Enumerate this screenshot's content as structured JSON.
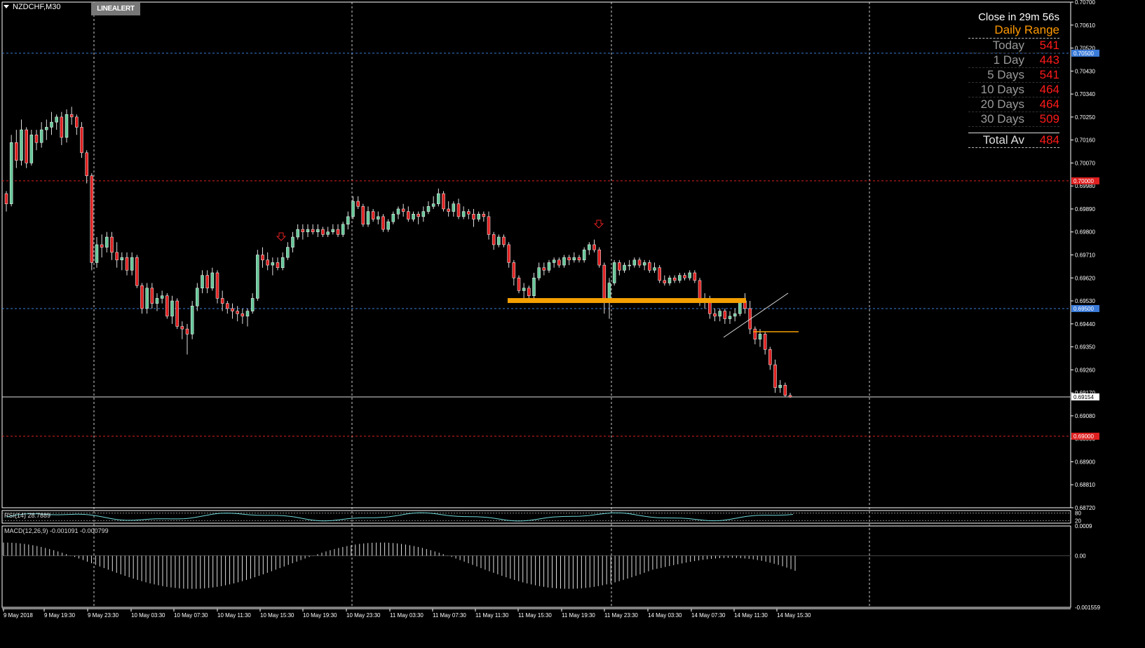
{
  "window": {
    "symbol": "NZDCHF,M30",
    "line_alert_label": "LINEALERT"
  },
  "panel": {
    "close_in": "Close in 29m 56s",
    "title": "Daily Range",
    "rows": [
      {
        "label": "Today",
        "value": "541"
      },
      {
        "label": "1 Day",
        "value": "443"
      },
      {
        "label": "5 Days",
        "value": "541"
      },
      {
        "label": "10 Days",
        "value": "464"
      },
      {
        "label": "20 Days",
        "value": "464"
      },
      {
        "label": "30 Days",
        "value": "509"
      }
    ],
    "total": {
      "label": "Total Av",
      "value": "484"
    }
  },
  "indicators": {
    "rsi_label": "RSI(14) 28.7889",
    "rsi_levels": [
      "80",
      "20"
    ],
    "macd_label": "MACD(12,26,9) -0.001091 -0.000799",
    "macd_ticks": [
      "0.0009",
      "0.00",
      "-0.001559"
    ]
  },
  "chart_data": {
    "type": "candlestick",
    "symbol": "NZDCHF",
    "timeframe": "M30",
    "ylim": [
      0.6872,
      0.707
    ],
    "y_ticks": [
      "0.70700",
      "0.70610",
      "0.70520",
      "0.70430",
      "0.70340",
      "0.70250",
      "0.70160",
      "0.70070",
      "0.69980",
      "0.69890",
      "0.69800",
      "0.69710",
      "0.69620",
      "0.69530",
      "0.69440",
      "0.69350",
      "0.69260",
      "0.69170",
      "0.69080",
      "0.68990",
      "0.68900",
      "0.68810",
      "0.68720"
    ],
    "x_ticks": [
      "9 May 2018",
      "9 May 19:30",
      "9 May 23:30",
      "10 May 03:30",
      "10 May 07:30",
      "10 May 11:30",
      "10 May 15:30",
      "10 May 19:30",
      "10 May 23:30",
      "11 May 03:30",
      "11 May 07:30",
      "11 May 11:30",
      "11 May 15:30",
      "11 May 19:30",
      "11 May 23:30",
      "14 May 03:30",
      "14 May 07:30",
      "14 May 11:30",
      "14 May 15:30"
    ],
    "levels": [
      {
        "price": 0.705,
        "label": "0.70500",
        "style": "dotted",
        "color": "#3b7bd8"
      },
      {
        "price": 0.7,
        "label": "0.70000",
        "style": "dotted",
        "color": "#e02020"
      },
      {
        "price": 0.695,
        "label": "0.69500",
        "style": "dotted",
        "color": "#3b7bd8"
      },
      {
        "price": 0.69154,
        "label": "0.69154",
        "style": "solid",
        "color": "#dddddd"
      },
      {
        "price": 0.69,
        "label": "0.69000",
        "style": "dotted",
        "color": "#e02020"
      }
    ],
    "bull_color": "#66c899",
    "bear_color": "#e02020",
    "candles": [
      [
        0.6995,
        0.6996,
        0.6988,
        0.6991
      ],
      [
        0.6991,
        0.7018,
        0.699,
        0.7015
      ],
      [
        0.7015,
        0.702,
        0.7005,
        0.7008
      ],
      [
        0.7008,
        0.7024,
        0.7006,
        0.702
      ],
      [
        0.702,
        0.7021,
        0.7005,
        0.7007
      ],
      [
        0.7007,
        0.702,
        0.7006,
        0.7018
      ],
      [
        0.7018,
        0.702,
        0.7012,
        0.7015
      ],
      [
        0.7015,
        0.7023,
        0.7013,
        0.702
      ],
      [
        0.702,
        0.7024,
        0.7016,
        0.7021
      ],
      [
        0.7021,
        0.7027,
        0.7018,
        0.7023
      ],
      [
        0.7023,
        0.7026,
        0.702,
        0.7025
      ],
      [
        0.7025,
        0.7027,
        0.7014,
        0.7017
      ],
      [
        0.7017,
        0.7028,
        0.7015,
        0.7026
      ],
      [
        0.7026,
        0.7029,
        0.7022,
        0.7025
      ],
      [
        0.7025,
        0.7026,
        0.7018,
        0.7021
      ],
      [
        0.7021,
        0.7023,
        0.7009,
        0.7011
      ],
      [
        0.7011,
        0.7012,
        0.6999,
        0.7002
      ],
      [
        0.7002,
        0.7003,
        0.6965,
        0.6968
      ],
      [
        0.6968,
        0.6978,
        0.6966,
        0.6975
      ],
      [
        0.6975,
        0.6979,
        0.697,
        0.6974
      ],
      [
        0.6974,
        0.698,
        0.6972,
        0.6978
      ],
      [
        0.6978,
        0.698,
        0.6969,
        0.6972
      ],
      [
        0.6972,
        0.6976,
        0.6966,
        0.6969
      ],
      [
        0.6969,
        0.6972,
        0.6965,
        0.697
      ],
      [
        0.697,
        0.6972,
        0.6963,
        0.6965
      ],
      [
        0.6965,
        0.6972,
        0.6963,
        0.697
      ],
      [
        0.697,
        0.6971,
        0.6958,
        0.6959
      ],
      [
        0.6959,
        0.696,
        0.6948,
        0.695
      ],
      [
        0.695,
        0.696,
        0.6948,
        0.6958
      ],
      [
        0.6958,
        0.696,
        0.695,
        0.6952
      ],
      [
        0.6952,
        0.6956,
        0.6949,
        0.6954
      ],
      [
        0.6954,
        0.6957,
        0.6952,
        0.6955
      ],
      [
        0.6955,
        0.6956,
        0.6946,
        0.6947
      ],
      [
        0.6947,
        0.6955,
        0.6944,
        0.6953
      ],
      [
        0.6953,
        0.6954,
        0.6942,
        0.6943
      ],
      [
        0.6943,
        0.6945,
        0.6938,
        0.6942
      ],
      [
        0.6942,
        0.6944,
        0.6932,
        0.694
      ],
      [
        0.694,
        0.6953,
        0.6938,
        0.6951
      ],
      [
        0.6951,
        0.696,
        0.6949,
        0.6958
      ],
      [
        0.6958,
        0.6965,
        0.6956,
        0.6963
      ],
      [
        0.6963,
        0.6965,
        0.6956,
        0.6958
      ],
      [
        0.6958,
        0.6966,
        0.6957,
        0.6964
      ],
      [
        0.6964,
        0.6965,
        0.6952,
        0.6954
      ],
      [
        0.6954,
        0.6957,
        0.6949,
        0.6952
      ],
      [
        0.6952,
        0.6953,
        0.6948,
        0.695
      ],
      [
        0.695,
        0.6952,
        0.6946,
        0.6949
      ],
      [
        0.6949,
        0.6951,
        0.6945,
        0.6948
      ],
      [
        0.6948,
        0.695,
        0.6944,
        0.6947
      ],
      [
        0.6947,
        0.695,
        0.6943,
        0.6949
      ],
      [
        0.6949,
        0.6956,
        0.6948,
        0.6954
      ],
      [
        0.6954,
        0.6973,
        0.6953,
        0.6971
      ],
      [
        0.6971,
        0.6974,
        0.6966,
        0.6969
      ],
      [
        0.6969,
        0.6972,
        0.6965,
        0.6967
      ],
      [
        0.6967,
        0.697,
        0.6963,
        0.6968
      ],
      [
        0.6968,
        0.697,
        0.6965,
        0.6966
      ],
      [
        0.6966,
        0.6972,
        0.6965,
        0.697
      ],
      [
        0.697,
        0.6976,
        0.6969,
        0.6974
      ],
      [
        0.6974,
        0.698,
        0.6972,
        0.6978
      ],
      [
        0.6978,
        0.6983,
        0.6977,
        0.6981
      ],
      [
        0.6981,
        0.6983,
        0.6977,
        0.698
      ],
      [
        0.698,
        0.6983,
        0.6978,
        0.6981
      ],
      [
        0.6981,
        0.6983,
        0.6979,
        0.698
      ],
      [
        0.698,
        0.6983,
        0.6978,
        0.6981
      ],
      [
        0.6981,
        0.6982,
        0.6978,
        0.6979
      ],
      [
        0.6979,
        0.6982,
        0.6978,
        0.698
      ],
      [
        0.698,
        0.6983,
        0.6979,
        0.6981
      ],
      [
        0.6981,
        0.6983,
        0.6978,
        0.6979
      ],
      [
        0.6979,
        0.6984,
        0.6978,
        0.6983
      ],
      [
        0.6983,
        0.6988,
        0.6981,
        0.6986
      ],
      [
        0.6986,
        0.6994,
        0.6985,
        0.6992
      ],
      [
        0.6992,
        0.6994,
        0.6989,
        0.699
      ],
      [
        0.699,
        0.6991,
        0.6982,
        0.6983
      ],
      [
        0.6983,
        0.699,
        0.6982,
        0.6988
      ],
      [
        0.6988,
        0.6989,
        0.6984,
        0.6985
      ],
      [
        0.6985,
        0.6988,
        0.6983,
        0.6986
      ],
      [
        0.6986,
        0.6987,
        0.698,
        0.6981
      ],
      [
        0.6981,
        0.6985,
        0.698,
        0.6984
      ],
      [
        0.6984,
        0.6988,
        0.6983,
        0.6987
      ],
      [
        0.6987,
        0.699,
        0.6985,
        0.6989
      ],
      [
        0.6989,
        0.6991,
        0.6986,
        0.6988
      ],
      [
        0.6988,
        0.699,
        0.6984,
        0.6985
      ],
      [
        0.6985,
        0.6988,
        0.6984,
        0.6987
      ],
      [
        0.6987,
        0.6988,
        0.6983,
        0.6986
      ],
      [
        0.6986,
        0.699,
        0.6984,
        0.6988
      ],
      [
        0.6988,
        0.6992,
        0.6987,
        0.699
      ],
      [
        0.699,
        0.6994,
        0.6989,
        0.6991
      ],
      [
        0.6991,
        0.6997,
        0.699,
        0.6995
      ],
      [
        0.6995,
        0.6996,
        0.6988,
        0.6989
      ],
      [
        0.6989,
        0.6992,
        0.6986,
        0.6988
      ],
      [
        0.6988,
        0.6992,
        0.6986,
        0.6991
      ],
      [
        0.6991,
        0.6993,
        0.6985,
        0.6986
      ],
      [
        0.6986,
        0.699,
        0.6985,
        0.6988
      ],
      [
        0.6988,
        0.6989,
        0.6985,
        0.6987
      ],
      [
        0.6987,
        0.6989,
        0.6982,
        0.6985
      ],
      [
        0.6985,
        0.6988,
        0.6984,
        0.6987
      ],
      [
        0.6987,
        0.6988,
        0.6984,
        0.6986
      ],
      [
        0.6986,
        0.6988,
        0.6977,
        0.6979
      ],
      [
        0.6979,
        0.698,
        0.6973,
        0.6975
      ],
      [
        0.6975,
        0.6979,
        0.6974,
        0.6978
      ],
      [
        0.6978,
        0.6979,
        0.6974,
        0.6975
      ],
      [
        0.6975,
        0.6976,
        0.6966,
        0.6968
      ],
      [
        0.6968,
        0.6969,
        0.6959,
        0.6962
      ],
      [
        0.6962,
        0.6963,
        0.6956,
        0.6957
      ],
      [
        0.6957,
        0.696,
        0.6954,
        0.6958
      ],
      [
        0.6958,
        0.6959,
        0.6953,
        0.6955
      ],
      [
        0.6955,
        0.6964,
        0.6954,
        0.6962
      ],
      [
        0.6962,
        0.6968,
        0.6961,
        0.6966
      ],
      [
        0.6966,
        0.6968,
        0.6963,
        0.6965
      ],
      [
        0.6965,
        0.6969,
        0.6964,
        0.6968
      ],
      [
        0.6968,
        0.697,
        0.6966,
        0.6969
      ],
      [
        0.6969,
        0.697,
        0.6966,
        0.6967
      ],
      [
        0.6967,
        0.6971,
        0.6966,
        0.697
      ],
      [
        0.697,
        0.6971,
        0.6967,
        0.6969
      ],
      [
        0.6969,
        0.6972,
        0.6968,
        0.697
      ],
      [
        0.697,
        0.6971,
        0.6968,
        0.6969
      ],
      [
        0.6969,
        0.6974,
        0.6968,
        0.6973
      ],
      [
        0.6973,
        0.6976,
        0.6971,
        0.6975
      ],
      [
        0.6975,
        0.6977,
        0.6972,
        0.6973
      ],
      [
        0.6973,
        0.6974,
        0.6966,
        0.6967
      ],
      [
        0.6967,
        0.6968,
        0.6948,
        0.6953
      ],
      [
        0.6953,
        0.6962,
        0.6946,
        0.696
      ],
      [
        0.696,
        0.6969,
        0.6959,
        0.6968
      ],
      [
        0.6968,
        0.6969,
        0.6963,
        0.6965
      ],
      [
        0.6965,
        0.6968,
        0.6964,
        0.6967
      ],
      [
        0.6967,
        0.6969,
        0.6965,
        0.6967
      ],
      [
        0.6967,
        0.697,
        0.6966,
        0.6969
      ],
      [
        0.6969,
        0.697,
        0.6966,
        0.6967
      ],
      [
        0.6967,
        0.6969,
        0.6965,
        0.6968
      ],
      [
        0.6968,
        0.6969,
        0.6964,
        0.6965
      ],
      [
        0.6965,
        0.6968,
        0.6964,
        0.6966
      ],
      [
        0.6966,
        0.6967,
        0.696,
        0.6961
      ],
      [
        0.6961,
        0.6963,
        0.6959,
        0.696
      ],
      [
        0.696,
        0.6963,
        0.6959,
        0.6962
      ],
      [
        0.6962,
        0.6963,
        0.696,
        0.6961
      ],
      [
        0.6961,
        0.6964,
        0.696,
        0.6963
      ],
      [
        0.6963,
        0.6964,
        0.6961,
        0.6962
      ],
      [
        0.6962,
        0.6965,
        0.6961,
        0.6964
      ],
      [
        0.6964,
        0.6965,
        0.696,
        0.6961
      ],
      [
        0.6961,
        0.6962,
        0.6951,
        0.6953
      ],
      [
        0.6953,
        0.6956,
        0.695,
        0.6954
      ],
      [
        0.6954,
        0.6955,
        0.6946,
        0.6948
      ],
      [
        0.6948,
        0.695,
        0.6945,
        0.6947
      ],
      [
        0.6947,
        0.695,
        0.6945,
        0.6949
      ],
      [
        0.6949,
        0.695,
        0.6944,
        0.6946
      ],
      [
        0.6946,
        0.6949,
        0.6944,
        0.6947
      ],
      [
        0.6947,
        0.695,
        0.6945,
        0.6948
      ],
      [
        0.6948,
        0.6954,
        0.6947,
        0.6953
      ],
      [
        0.6953,
        0.6956,
        0.6948,
        0.695
      ],
      [
        0.695,
        0.6953,
        0.694,
        0.6942
      ],
      [
        0.6942,
        0.6943,
        0.6936,
        0.6938
      ],
      [
        0.6938,
        0.6942,
        0.6935,
        0.694
      ],
      [
        0.694,
        0.6941,
        0.6932,
        0.6934
      ],
      [
        0.6934,
        0.6935,
        0.6926,
        0.6928
      ],
      [
        0.6928,
        0.693,
        0.6917,
        0.6919
      ],
      [
        0.6919,
        0.6922,
        0.6917,
        0.692
      ],
      [
        0.692,
        0.6921,
        0.69154,
        0.6916
      ],
      [
        0.6916,
        0.6917,
        0.6915,
        0.69154
      ]
    ],
    "rsi": {
      "value": 28.7889,
      "levels": [
        80,
        20
      ]
    },
    "macd": {
      "params": "12,26,9",
      "value": -0.001091,
      "signal": -0.000799,
      "ylim": [
        -0.001559,
        0.0009
      ]
    }
  }
}
